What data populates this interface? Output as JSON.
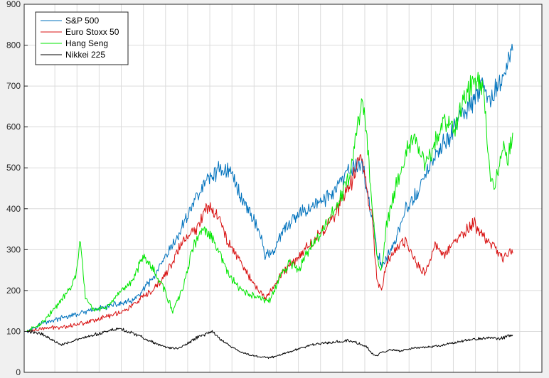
{
  "chart_data": {
    "type": "line",
    "title": "",
    "xlabel": "",
    "ylabel": "",
    "ylim": [
      0,
      900
    ],
    "yticks": [
      0,
      100,
      200,
      300,
      400,
      500,
      600,
      700,
      800,
      900
    ],
    "xlim": [
      0,
      1
    ],
    "grid": true,
    "legend_location": "top-left",
    "series": [
      {
        "name": "S&P 500",
        "color": "#0072bd",
        "points": [
          [
            0.0,
            100
          ],
          [
            0.03,
            120
          ],
          [
            0.08,
            135
          ],
          [
            0.13,
            150
          ],
          [
            0.18,
            165
          ],
          [
            0.22,
            175
          ],
          [
            0.26,
            230
          ],
          [
            0.28,
            270
          ],
          [
            0.31,
            330
          ],
          [
            0.34,
            410
          ],
          [
            0.37,
            470
          ],
          [
            0.4,
            500
          ],
          [
            0.42,
            490
          ],
          [
            0.44,
            430
          ],
          [
            0.46,
            390
          ],
          [
            0.48,
            340
          ],
          [
            0.49,
            285
          ],
          [
            0.51,
            300
          ],
          [
            0.53,
            350
          ],
          [
            0.55,
            375
          ],
          [
            0.57,
            395
          ],
          [
            0.59,
            410
          ],
          [
            0.61,
            420
          ],
          [
            0.63,
            440
          ],
          [
            0.65,
            470
          ],
          [
            0.67,
            500
          ],
          [
            0.69,
            510
          ],
          [
            0.7,
            450
          ],
          [
            0.72,
            300
          ],
          [
            0.73,
            260
          ],
          [
            0.75,
            300
          ],
          [
            0.77,
            360
          ],
          [
            0.78,
            400
          ],
          [
            0.8,
            430
          ],
          [
            0.82,
            480
          ],
          [
            0.83,
            510
          ],
          [
            0.85,
            540
          ],
          [
            0.87,
            580
          ],
          [
            0.89,
            620
          ],
          [
            0.91,
            650
          ],
          [
            0.93,
            680
          ],
          [
            0.94,
            700
          ],
          [
            0.95,
            660
          ],
          [
            0.96,
            680
          ],
          [
            0.98,
            720
          ],
          [
            0.99,
            760
          ],
          [
            1.0,
            800
          ]
        ]
      },
      {
        "name": "Euro Stoxx 50",
        "color": "#d81010",
        "points": [
          [
            0.0,
            100
          ],
          [
            0.04,
            108
          ],
          [
            0.08,
            112
          ],
          [
            0.12,
            122
          ],
          [
            0.16,
            135
          ],
          [
            0.2,
            150
          ],
          [
            0.23,
            175
          ],
          [
            0.26,
            200
          ],
          [
            0.28,
            230
          ],
          [
            0.3,
            270
          ],
          [
            0.32,
            320
          ],
          [
            0.35,
            350
          ],
          [
            0.37,
            410
          ],
          [
            0.39,
            390
          ],
          [
            0.41,
            330
          ],
          [
            0.43,
            290
          ],
          [
            0.45,
            250
          ],
          [
            0.47,
            210
          ],
          [
            0.49,
            180
          ],
          [
            0.51,
            215
          ],
          [
            0.53,
            250
          ],
          [
            0.55,
            270
          ],
          [
            0.57,
            300
          ],
          [
            0.59,
            320
          ],
          [
            0.61,
            350
          ],
          [
            0.63,
            380
          ],
          [
            0.65,
            420
          ],
          [
            0.67,
            470
          ],
          [
            0.68,
            510
          ],
          [
            0.69,
            530
          ],
          [
            0.7,
            440
          ],
          [
            0.71,
            390
          ],
          [
            0.72,
            230
          ],
          [
            0.73,
            200
          ],
          [
            0.74,
            270
          ],
          [
            0.76,
            300
          ],
          [
            0.78,
            320
          ],
          [
            0.8,
            270
          ],
          [
            0.82,
            240
          ],
          [
            0.84,
            310
          ],
          [
            0.86,
            290
          ],
          [
            0.88,
            320
          ],
          [
            0.9,
            340
          ],
          [
            0.92,
            365
          ],
          [
            0.94,
            330
          ],
          [
            0.96,
            310
          ],
          [
            0.98,
            280
          ],
          [
            1.0,
            300
          ]
        ]
      },
      {
        "name": "Hang Seng",
        "color": "#00e600",
        "points": [
          [
            0.0,
            100
          ],
          [
            0.03,
            120
          ],
          [
            0.06,
            160
          ],
          [
            0.08,
            190
          ],
          [
            0.1,
            230
          ],
          [
            0.11,
            325
          ],
          [
            0.12,
            180
          ],
          [
            0.14,
            150
          ],
          [
            0.17,
            165
          ],
          [
            0.19,
            190
          ],
          [
            0.22,
            230
          ],
          [
            0.24,
            290
          ],
          [
            0.26,
            250
          ],
          [
            0.28,
            210
          ],
          [
            0.3,
            150
          ],
          [
            0.32,
            200
          ],
          [
            0.34,
            300
          ],
          [
            0.36,
            350
          ],
          [
            0.38,
            330
          ],
          [
            0.4,
            280
          ],
          [
            0.42,
            230
          ],
          [
            0.44,
            200
          ],
          [
            0.46,
            190
          ],
          [
            0.48,
            180
          ],
          [
            0.5,
            175
          ],
          [
            0.52,
            230
          ],
          [
            0.54,
            270
          ],
          [
            0.56,
            250
          ],
          [
            0.58,
            300
          ],
          [
            0.6,
            330
          ],
          [
            0.62,
            370
          ],
          [
            0.64,
            410
          ],
          [
            0.66,
            470
          ],
          [
            0.67,
            510
          ],
          [
            0.68,
            600
          ],
          [
            0.69,
            660
          ],
          [
            0.7,
            570
          ],
          [
            0.71,
            420
          ],
          [
            0.72,
            280
          ],
          [
            0.73,
            250
          ],
          [
            0.74,
            360
          ],
          [
            0.76,
            460
          ],
          [
            0.78,
            540
          ],
          [
            0.8,
            570
          ],
          [
            0.82,
            500
          ],
          [
            0.84,
            560
          ],
          [
            0.86,
            620
          ],
          [
            0.88,
            600
          ],
          [
            0.9,
            660
          ],
          [
            0.92,
            720
          ],
          [
            0.94,
            700
          ],
          [
            0.95,
            520
          ],
          [
            0.96,
            450
          ],
          [
            0.98,
            550
          ],
          [
            0.99,
            530
          ],
          [
            1.0,
            570
          ]
        ]
      },
      {
        "name": "Nikkei 225",
        "color": "#000000",
        "points": [
          [
            0.0,
            100
          ],
          [
            0.03,
            95
          ],
          [
            0.05,
            80
          ],
          [
            0.07,
            68
          ],
          [
            0.09,
            75
          ],
          [
            0.11,
            82
          ],
          [
            0.13,
            88
          ],
          [
            0.15,
            95
          ],
          [
            0.17,
            102
          ],
          [
            0.19,
            108
          ],
          [
            0.21,
            98
          ],
          [
            0.23,
            90
          ],
          [
            0.25,
            78
          ],
          [
            0.27,
            68
          ],
          [
            0.29,
            60
          ],
          [
            0.31,
            58
          ],
          [
            0.33,
            70
          ],
          [
            0.35,
            85
          ],
          [
            0.37,
            95
          ],
          [
            0.38,
            100
          ],
          [
            0.4,
            80
          ],
          [
            0.42,
            62
          ],
          [
            0.44,
            50
          ],
          [
            0.46,
            42
          ],
          [
            0.48,
            38
          ],
          [
            0.5,
            36
          ],
          [
            0.52,
            42
          ],
          [
            0.54,
            50
          ],
          [
            0.56,
            58
          ],
          [
            0.58,
            65
          ],
          [
            0.6,
            70
          ],
          [
            0.62,
            72
          ],
          [
            0.64,
            75
          ],
          [
            0.66,
            78
          ],
          [
            0.68,
            72
          ],
          [
            0.7,
            62
          ],
          [
            0.71,
            45
          ],
          [
            0.72,
            40
          ],
          [
            0.73,
            48
          ],
          [
            0.75,
            55
          ],
          [
            0.77,
            52
          ],
          [
            0.79,
            58
          ],
          [
            0.81,
            60
          ],
          [
            0.83,
            62
          ],
          [
            0.85,
            65
          ],
          [
            0.87,
            70
          ],
          [
            0.89,
            75
          ],
          [
            0.91,
            80
          ],
          [
            0.93,
            82
          ],
          [
            0.95,
            85
          ],
          [
            0.97,
            82
          ],
          [
            0.99,
            88
          ],
          [
            1.0,
            90
          ]
        ]
      }
    ]
  }
}
